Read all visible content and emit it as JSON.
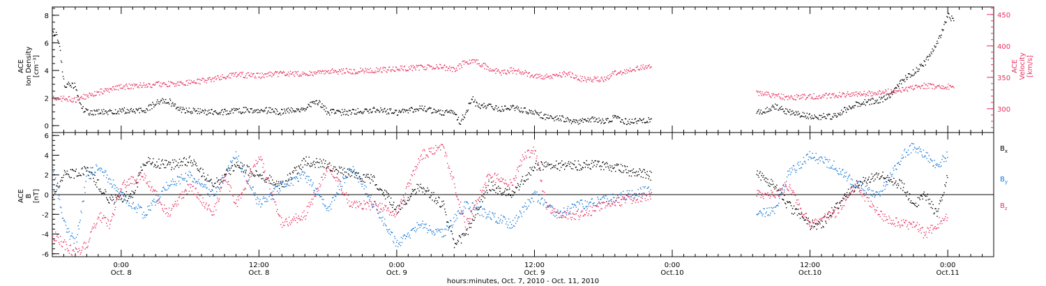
{
  "figure": {
    "xlabel": "hours:minutes, Oct.  7, 2010 - Oct. 11, 2010",
    "time_ticks": [
      {
        "hours": 6,
        "time": "0:00",
        "date": "Oct. 8"
      },
      {
        "hours": 18,
        "time": "12:00",
        "date": "Oct. 8"
      },
      {
        "hours": 30,
        "time": "0:00",
        "date": "Oct. 9"
      },
      {
        "hours": 42,
        "time": "12:00",
        "date": "Oct. 9"
      },
      {
        "hours": 54,
        "time": "0:00",
        "date": "Oct.10"
      },
      {
        "hours": 66,
        "time": "12:00",
        "date": "Oct.10"
      },
      {
        "hours": 78,
        "time": "0:00",
        "date": "Oct.11"
      }
    ]
  },
  "colors": {
    "black": "#000000",
    "pink": "#e8305f",
    "blue": "#1a7bd6"
  },
  "chart_data": [
    {
      "type": "scatter",
      "panel": "top",
      "ylabel_left": [
        "ACE",
        "Ion Density",
        "[cm⁻³]"
      ],
      "ylabel_right": [
        "ACE",
        "Velocity",
        "[km/s]"
      ],
      "ylim_left": [
        -0.5,
        8.6
      ],
      "ylim_right": [
        262,
        462
      ],
      "left_ticks": [
        "0",
        "2",
        "4",
        "6",
        "8"
      ],
      "right_ticks": [
        "300",
        "350",
        "400",
        "450"
      ],
      "x_unit": "hours since Oct. 7 18:00",
      "xlim": [
        0,
        82
      ],
      "series": [
        {
          "axis": "left",
          "color": "#000000",
          "points": [
            [
              0.0,
              7.0
            ],
            [
              0.5,
              6.3
            ],
            [
              0.8,
              4.4
            ],
            [
              1.0,
              3.0
            ],
            [
              2.0,
              2.9
            ],
            [
              2.5,
              1.3
            ],
            [
              3.0,
              1.0
            ],
            [
              5.0,
              1.0
            ],
            [
              6.0,
              1.1
            ],
            [
              8.0,
              1.1
            ],
            [
              9.0,
              1.7
            ],
            [
              10.0,
              1.9
            ],
            [
              11.0,
              1.2
            ],
            [
              14.0,
              1.0
            ],
            [
              16.0,
              1.1
            ],
            [
              18.0,
              1.2
            ],
            [
              20.0,
              1.0
            ],
            [
              22.0,
              1.3
            ],
            [
              23.0,
              1.8
            ],
            [
              24.0,
              1.0
            ],
            [
              26.0,
              1.0
            ],
            [
              28.0,
              1.2
            ],
            [
              30.0,
              1.0
            ],
            [
              32.0,
              1.3
            ],
            [
              34.0,
              1.0
            ],
            [
              35.0,
              0.9
            ],
            [
              35.5,
              0.3
            ],
            [
              36.0,
              1.0
            ],
            [
              36.5,
              2.0
            ],
            [
              37.0,
              1.5
            ],
            [
              38.0,
              1.5
            ],
            [
              39.0,
              1.2
            ],
            [
              40.0,
              1.3
            ],
            [
              42.0,
              1.0
            ],
            [
              43.0,
              0.6
            ],
            [
              44.0,
              0.6
            ],
            [
              45.5,
              0.3
            ],
            [
              47.0,
              0.5
            ],
            [
              48.0,
              0.3
            ],
            [
              49.0,
              0.6
            ],
            [
              50.0,
              0.3
            ],
            [
              52.0,
              0.5
            ],
            [
              61.5,
              1.0
            ],
            [
              63.0,
              1.4
            ],
            [
              64.0,
              1.0
            ],
            [
              66.0,
              0.7
            ],
            [
              68.0,
              0.7
            ],
            [
              70.0,
              1.6
            ],
            [
              72.0,
              1.9
            ],
            [
              73.0,
              2.2
            ],
            [
              74.0,
              3.3
            ],
            [
              75.0,
              3.9
            ],
            [
              76.0,
              4.6
            ],
            [
              77.0,
              6.0
            ],
            [
              77.5,
              6.9
            ],
            [
              78.0,
              8.0
            ],
            [
              78.5,
              7.6
            ]
          ]
        },
        {
          "axis": "right",
          "color": "#e8305f",
          "points": [
            [
              0.0,
              318
            ],
            [
              2.0,
              315
            ],
            [
              4.0,
              327
            ],
            [
              6.0,
              335
            ],
            [
              8.0,
              338
            ],
            [
              10.0,
              340
            ],
            [
              12.0,
              342
            ],
            [
              14.0,
              348
            ],
            [
              16.0,
              355
            ],
            [
              18.0,
              353
            ],
            [
              20.0,
              357
            ],
            [
              22.0,
              355
            ],
            [
              24.0,
              360
            ],
            [
              26.0,
              360
            ],
            [
              28.0,
              362
            ],
            [
              30.0,
              364
            ],
            [
              32.0,
              366
            ],
            [
              34.0,
              367
            ],
            [
              35.0,
              362
            ],
            [
              36.0,
              376
            ],
            [
              37.0,
              374
            ],
            [
              38.0,
              365
            ],
            [
              39.0,
              358
            ],
            [
              40.0,
              362
            ],
            [
              42.0,
              353
            ],
            [
              43.0,
              352
            ],
            [
              44.0,
              355
            ],
            [
              45.0,
              356
            ],
            [
              46.0,
              348
            ],
            [
              48.0,
              347
            ],
            [
              49.0,
              358
            ],
            [
              50.0,
              360
            ],
            [
              52.0,
              370
            ],
            [
              61.5,
              325
            ],
            [
              63.0,
              322
            ],
            [
              64.0,
              318
            ],
            [
              66.0,
              320
            ],
            [
              68.0,
              322
            ],
            [
              70.0,
              324
            ],
            [
              72.0,
              326
            ],
            [
              73.0,
              328
            ],
            [
              74.0,
              331
            ],
            [
              75.0,
              335
            ],
            [
              76.0,
              337
            ],
            [
              77.0,
              336
            ],
            [
              78.5,
              336
            ]
          ]
        }
      ]
    },
    {
      "type": "scatter",
      "panel": "bottom",
      "ylabel_left": [
        "ACE",
        "B",
        "[nT]"
      ],
      "ylim": [
        -6.3,
        6.3
      ],
      "left_ticks": [
        "-6",
        "-4",
        "-2",
        "0",
        "2",
        "4",
        "6"
      ],
      "x_unit": "hours since Oct. 7 18:00",
      "xlim": [
        0,
        82
      ],
      "legend": [
        "B",
        "B",
        "B"
      ],
      "legend_sub": [
        "x",
        "y",
        "z"
      ],
      "series": [
        {
          "name": "Bx",
          "color": "#000000",
          "points": [
            [
              0.0,
              0.0
            ],
            [
              1.0,
              2.0
            ],
            [
              3.0,
              2.5
            ],
            [
              5.0,
              -0.5
            ],
            [
              7.0,
              0.0
            ],
            [
              8.0,
              3.5
            ],
            [
              10.0,
              3.0
            ],
            [
              12.0,
              3.5
            ],
            [
              14.0,
              1.0
            ],
            [
              16.0,
              3.0
            ],
            [
              18.0,
              2.0
            ],
            [
              20.0,
              1.0
            ],
            [
              22.0,
              3.5
            ],
            [
              24.0,
              3.0
            ],
            [
              26.0,
              2.0
            ],
            [
              28.0,
              1.5
            ],
            [
              30.0,
              -1.5
            ],
            [
              32.0,
              1.0
            ],
            [
              34.0,
              -1.0
            ],
            [
              35.0,
              -5.0
            ],
            [
              36.0,
              -4.0
            ],
            [
              38.0,
              1.0
            ],
            [
              40.0,
              0.0
            ],
            [
              42.0,
              3.0
            ],
            [
              44.0,
              3.0
            ],
            [
              46.0,
              3.0
            ],
            [
              48.0,
              3.0
            ],
            [
              50.0,
              2.5
            ],
            [
              52.0,
              2.0
            ],
            [
              61.5,
              2.0
            ],
            [
              63.0,
              1.0
            ],
            [
              64.0,
              -1.0
            ],
            [
              66.0,
              -3.0
            ],
            [
              67.0,
              -3.0
            ],
            [
              68.0,
              -1.5
            ],
            [
              70.0,
              1.0
            ],
            [
              72.0,
              2.0
            ],
            [
              74.0,
              1.0
            ],
            [
              75.0,
              -1.0
            ],
            [
              76.0,
              0.0
            ],
            [
              77.0,
              -2.0
            ],
            [
              78.0,
              2.0
            ]
          ]
        },
        {
          "name": "By",
          "color": "#1a7bd6",
          "points": [
            [
              0.0,
              3.0
            ],
            [
              1.0,
              -3.0
            ],
            [
              2.0,
              -5.0
            ],
            [
              3.0,
              2.0
            ],
            [
              4.0,
              3.0
            ],
            [
              6.0,
              0.0
            ],
            [
              8.0,
              -2.0
            ],
            [
              10.0,
              1.0
            ],
            [
              12.0,
              2.0
            ],
            [
              14.0,
              0.0
            ],
            [
              16.0,
              4.0
            ],
            [
              18.0,
              -1.0
            ],
            [
              20.0,
              1.0
            ],
            [
              22.0,
              2.0
            ],
            [
              24.0,
              -1.5
            ],
            [
              26.0,
              3.0
            ],
            [
              28.0,
              -1.0
            ],
            [
              30.0,
              -5.0
            ],
            [
              32.0,
              -3.0
            ],
            [
              34.0,
              -4.0
            ],
            [
              36.0,
              -1.0
            ],
            [
              38.0,
              -2.0
            ],
            [
              40.0,
              -3.0
            ],
            [
              42.0,
              0.0
            ],
            [
              44.0,
              -2.0
            ],
            [
              46.0,
              -1.0
            ],
            [
              48.0,
              -0.5
            ],
            [
              50.0,
              0.0
            ],
            [
              52.0,
              0.5
            ],
            [
              61.5,
              -2.0
            ],
            [
              63.0,
              -1.5
            ],
            [
              64.0,
              2.0
            ],
            [
              66.0,
              4.0
            ],
            [
              68.0,
              3.0
            ],
            [
              70.0,
              1.0
            ],
            [
              72.0,
              0.0
            ],
            [
              74.0,
              4.0
            ],
            [
              75.0,
              5.0
            ],
            [
              77.0,
              3.0
            ],
            [
              78.0,
              4.0
            ]
          ]
        },
        {
          "name": "Bz",
          "color": "#e8305f",
          "points": [
            [
              0.0,
              -4.0
            ],
            [
              1.0,
              -5.0
            ],
            [
              2.0,
              -6.0
            ],
            [
              3.0,
              -5.0
            ],
            [
              4.0,
              -2.0
            ],
            [
              5.0,
              -3.0
            ],
            [
              6.0,
              1.0
            ],
            [
              8.0,
              2.0
            ],
            [
              10.0,
              -2.0
            ],
            [
              12.0,
              1.0
            ],
            [
              14.0,
              -2.0
            ],
            [
              15.0,
              2.0
            ],
            [
              16.0,
              -1.0
            ],
            [
              18.0,
              4.0
            ],
            [
              20.0,
              -3.0
            ],
            [
              22.0,
              -2.0
            ],
            [
              24.0,
              3.0
            ],
            [
              26.0,
              -1.0
            ],
            [
              28.0,
              -1.0
            ],
            [
              30.0,
              -2.0
            ],
            [
              32.0,
              4.0
            ],
            [
              34.0,
              5.0
            ],
            [
              36.0,
              -3.0
            ],
            [
              38.0,
              2.0
            ],
            [
              40.0,
              1.0
            ],
            [
              41.0,
              4.0
            ],
            [
              42.0,
              4.5
            ],
            [
              43.0,
              -1.0
            ],
            [
              44.0,
              -2.0
            ],
            [
              46.0,
              -2.0
            ],
            [
              48.0,
              -1.0
            ],
            [
              50.0,
              -0.5
            ],
            [
              52.0,
              0.0
            ],
            [
              61.5,
              0.0
            ],
            [
              63.0,
              0.0
            ],
            [
              64.0,
              1.0
            ],
            [
              66.0,
              -3.0
            ],
            [
              68.0,
              -2.0
            ],
            [
              70.0,
              1.0
            ],
            [
              72.0,
              -2.0
            ],
            [
              74.0,
              -3.0
            ],
            [
              75.0,
              -3.0
            ],
            [
              76.0,
              -4.0
            ],
            [
              78.0,
              -2.0
            ]
          ]
        }
      ]
    }
  ]
}
